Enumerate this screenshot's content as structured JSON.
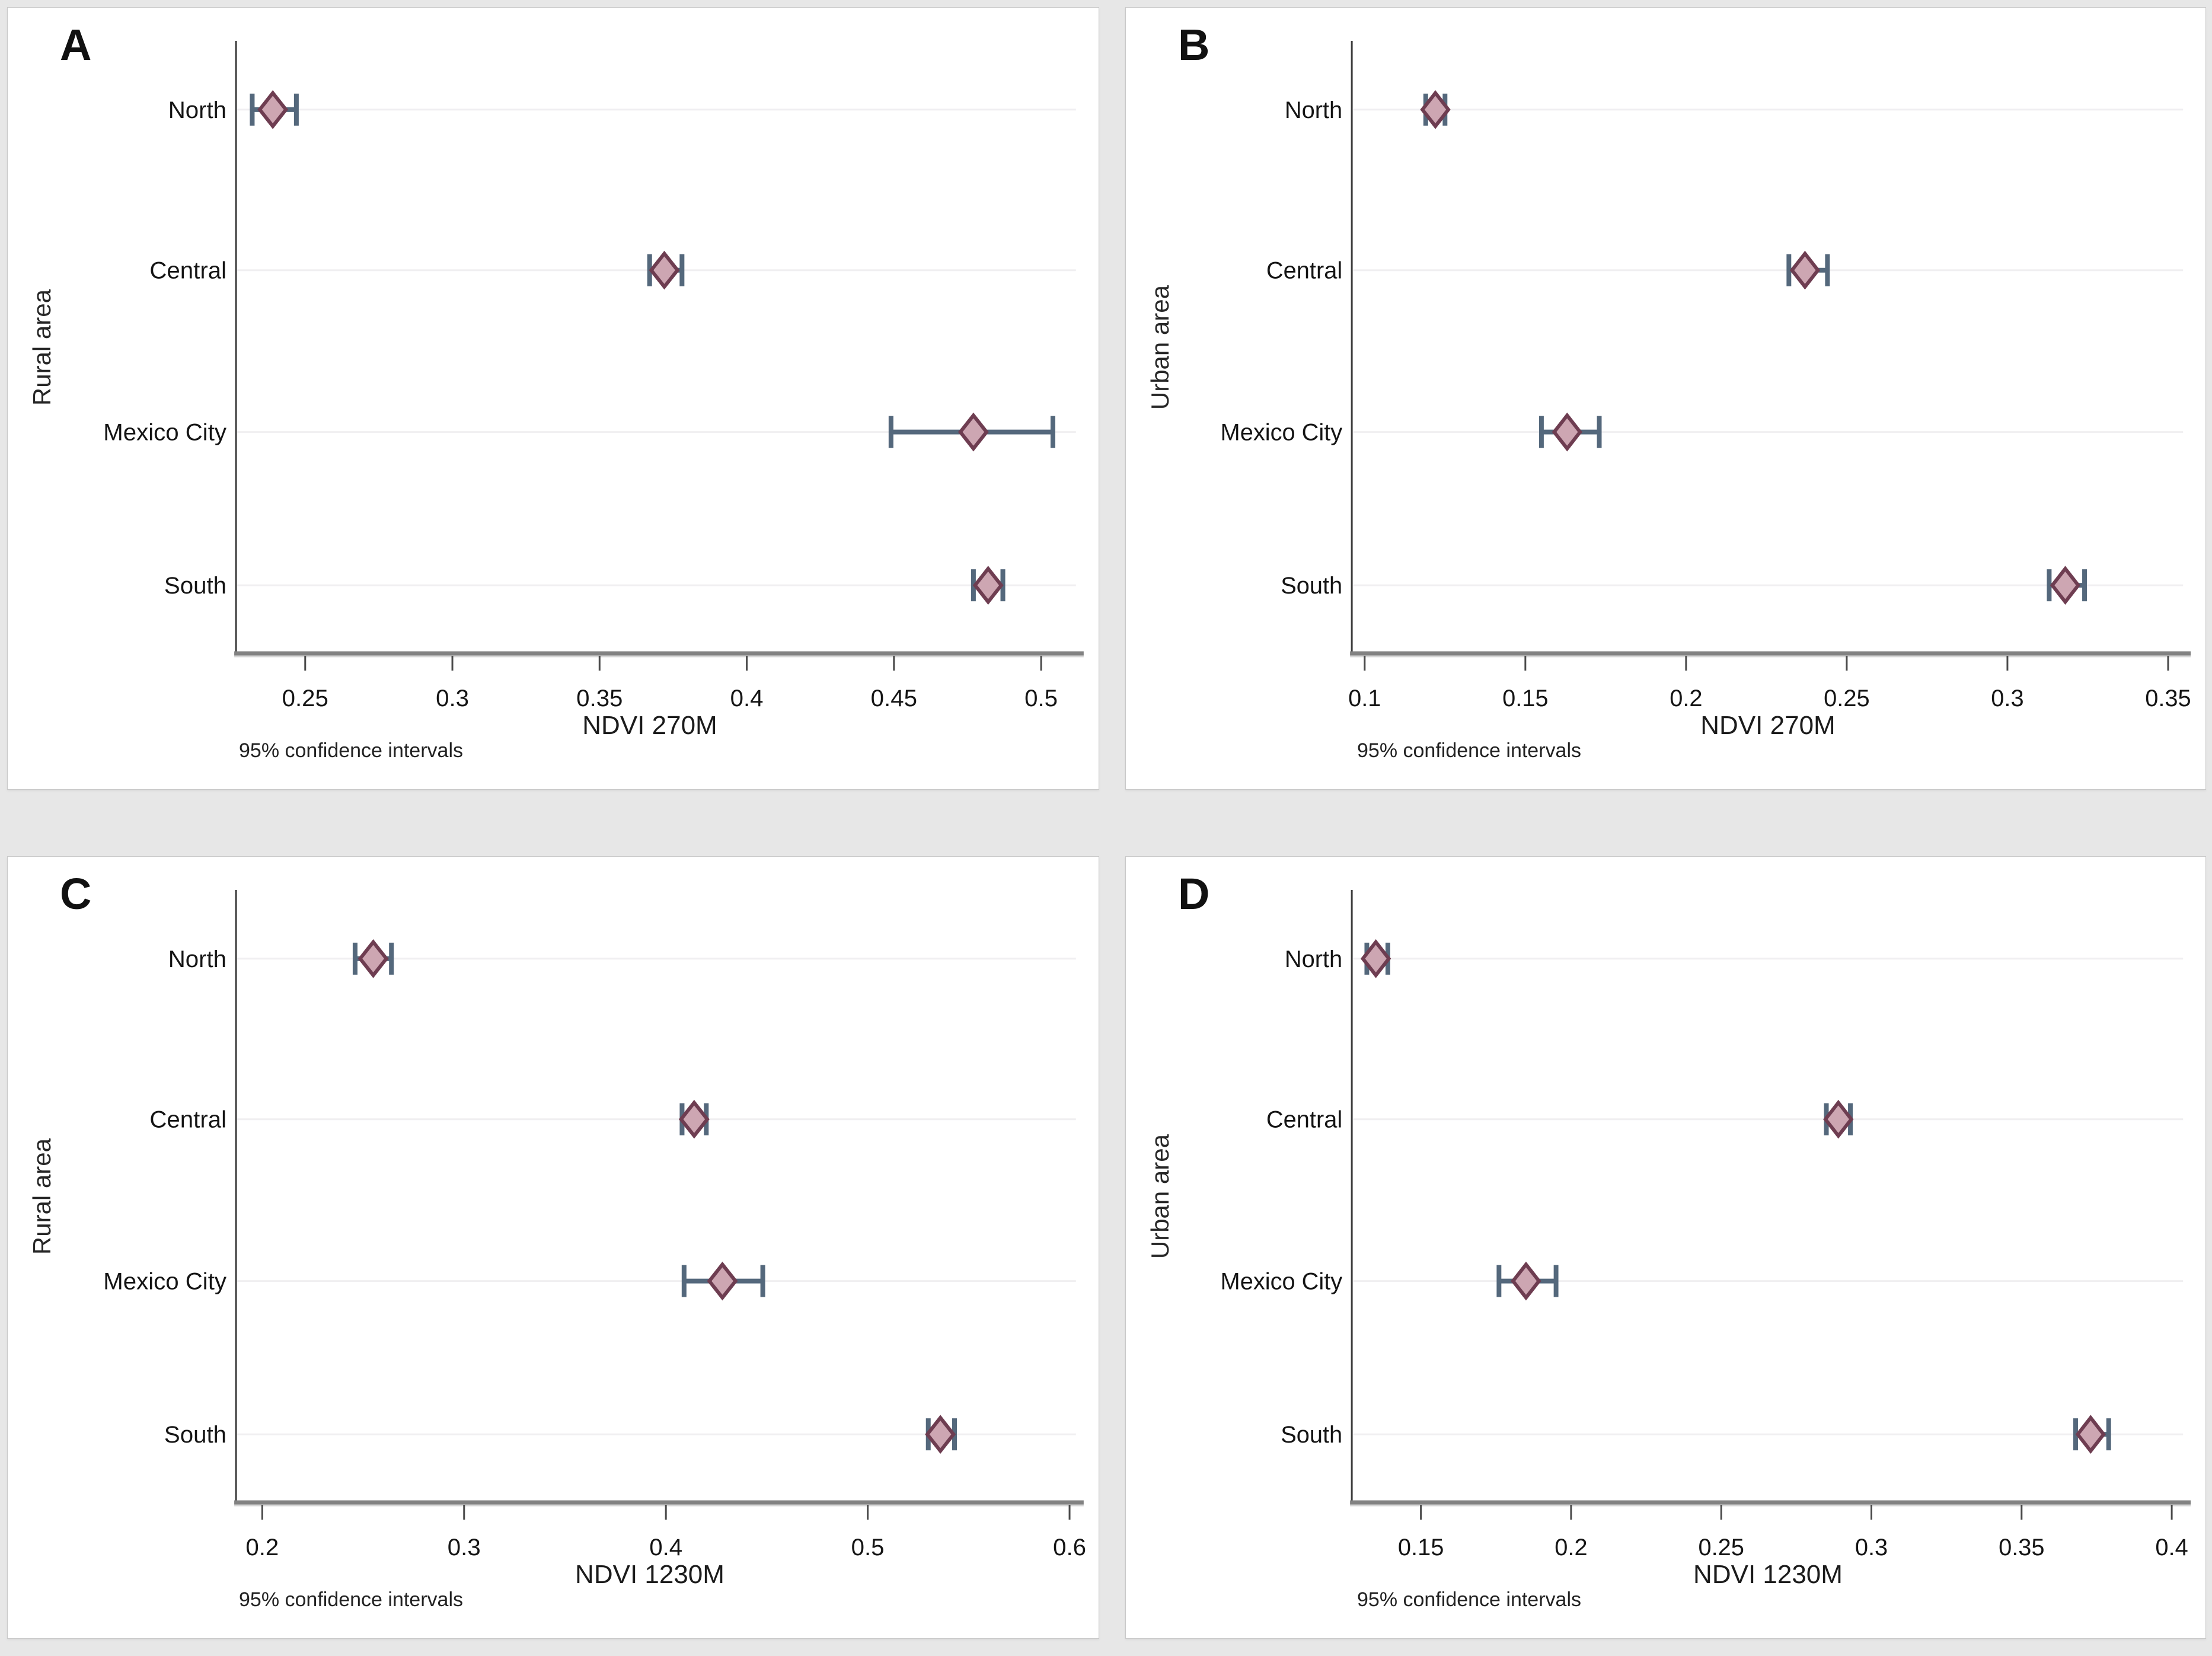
{
  "page": {
    "background_color": "#e7e7e7",
    "panel_background": "#ffffff",
    "description_note": "95% confidence intervals"
  },
  "style": {
    "ci_color": "#54687c",
    "marker_fill": "#cda6b2",
    "marker_stroke": "#6e3d51",
    "grid_color": "#f0eff1",
    "axis_color": "#3d3d3d",
    "baseline_color": "#828282",
    "baseline_shadow_color": "#d6d6d6",
    "tick_color": "#4a4a4a",
    "text_color": "#141414"
  },
  "chart_data": [
    {
      "type": "scatter",
      "panel_label": "A",
      "xlabel": "NDVI 270M",
      "ylabel": "Rural area",
      "note": "95% confidence intervals",
      "legend": "none",
      "grid": "horizontal row lines",
      "marker": "diamond with 95% CI whiskers",
      "categories": [
        "North",
        "Central",
        "Mexico City",
        "South"
      ],
      "xlim": [
        0.2265,
        0.51
      ],
      "xticks": [
        {
          "label": "0.25",
          "value": 0.25
        },
        {
          "label": "0.3",
          "value": 0.3
        },
        {
          "label": "0.35",
          "value": 0.35
        },
        {
          "label": "0.4",
          "value": 0.4
        },
        {
          "label": "0.45",
          "value": 0.45
        },
        {
          "label": "0.5",
          "value": 0.5
        }
      ],
      "points": [
        {
          "category": "North",
          "mean": 0.239,
          "ci_low": 0.232,
          "ci_high": 0.247
        },
        {
          "category": "Central",
          "mean": 0.372,
          "ci_low": 0.367,
          "ci_high": 0.378
        },
        {
          "category": "Mexico City",
          "mean": 0.477,
          "ci_low": 0.449,
          "ci_high": 0.504
        },
        {
          "category": "South",
          "mean": 0.482,
          "ci_low": 0.477,
          "ci_high": 0.487
        }
      ]
    },
    {
      "type": "scatter",
      "panel_label": "B",
      "xlabel": "NDVI 270M",
      "ylabel": "Urban area",
      "note": "95% confidence intervals",
      "legend": "none",
      "grid": "horizontal row lines",
      "marker": "diamond with 95% CI whiskers",
      "categories": [
        "North",
        "Central",
        "Mexico City",
        "South"
      ],
      "xlim": [
        0.096,
        0.353
      ],
      "xticks": [
        {
          "label": "0.1",
          "value": 0.1
        },
        {
          "label": "0.15",
          "value": 0.15
        },
        {
          "label": "0.2",
          "value": 0.2
        },
        {
          "label": "0.25",
          "value": 0.25
        },
        {
          "label": "0.3",
          "value": 0.3
        },
        {
          "label": "0.35",
          "value": 0.35
        }
      ],
      "points": [
        {
          "category": "North",
          "mean": 0.122,
          "ci_low": 0.119,
          "ci_high": 0.125
        },
        {
          "category": "Central",
          "mean": 0.237,
          "ci_low": 0.232,
          "ci_high": 0.244
        },
        {
          "category": "Mexico City",
          "mean": 0.163,
          "ci_low": 0.155,
          "ci_high": 0.173
        },
        {
          "category": "South",
          "mean": 0.318,
          "ci_low": 0.313,
          "ci_high": 0.324
        }
      ]
    },
    {
      "type": "scatter",
      "panel_label": "C",
      "xlabel": "NDVI 1230M",
      "ylabel": "Rural area",
      "note": "95% confidence intervals",
      "legend": "none",
      "grid": "horizontal row lines",
      "marker": "diamond with 95% CI whiskers",
      "categories": [
        "North",
        "Central",
        "Mexico City",
        "South"
      ],
      "xlim": [
        0.187,
        0.6005
      ],
      "xticks": [
        {
          "label": "0.2",
          "value": 0.2
        },
        {
          "label": "0.3",
          "value": 0.3
        },
        {
          "label": "0.4",
          "value": 0.4
        },
        {
          "label": "0.5",
          "value": 0.5
        },
        {
          "label": "0.6",
          "value": 0.6
        }
      ],
      "points": [
        {
          "category": "North",
          "mean": 0.255,
          "ci_low": 0.246,
          "ci_high": 0.264
        },
        {
          "category": "Central",
          "mean": 0.414,
          "ci_low": 0.408,
          "ci_high": 0.42
        },
        {
          "category": "Mexico City",
          "mean": 0.428,
          "ci_low": 0.409,
          "ci_high": 0.448
        },
        {
          "category": "South",
          "mean": 0.536,
          "ci_low": 0.53,
          "ci_high": 0.543
        }
      ]
    },
    {
      "type": "scatter",
      "panel_label": "D",
      "xlabel": "NDVI 1230M",
      "ylabel": "Urban area",
      "note": "95% confidence intervals",
      "legend": "none",
      "grid": "horizontal row lines",
      "marker": "diamond with 95% CI whiskers",
      "categories": [
        "North",
        "Central",
        "Mexico City",
        "South"
      ],
      "xlim": [
        0.127,
        0.402
      ],
      "xticks": [
        {
          "label": "0.15",
          "value": 0.15
        },
        {
          "label": "0.2",
          "value": 0.2
        },
        {
          "label": "0.25",
          "value": 0.25
        },
        {
          "label": "0.3",
          "value": 0.3
        },
        {
          "label": "0.35",
          "value": 0.35
        },
        {
          "label": "0.4",
          "value": 0.4
        }
      ],
      "points": [
        {
          "category": "North",
          "mean": 0.135,
          "ci_low": 0.132,
          "ci_high": 0.139
        },
        {
          "category": "Central",
          "mean": 0.289,
          "ci_low": 0.285,
          "ci_high": 0.293
        },
        {
          "category": "Mexico City",
          "mean": 0.185,
          "ci_low": 0.176,
          "ci_high": 0.195
        },
        {
          "category": "South",
          "mean": 0.373,
          "ci_low": 0.368,
          "ci_high": 0.379
        }
      ]
    }
  ]
}
